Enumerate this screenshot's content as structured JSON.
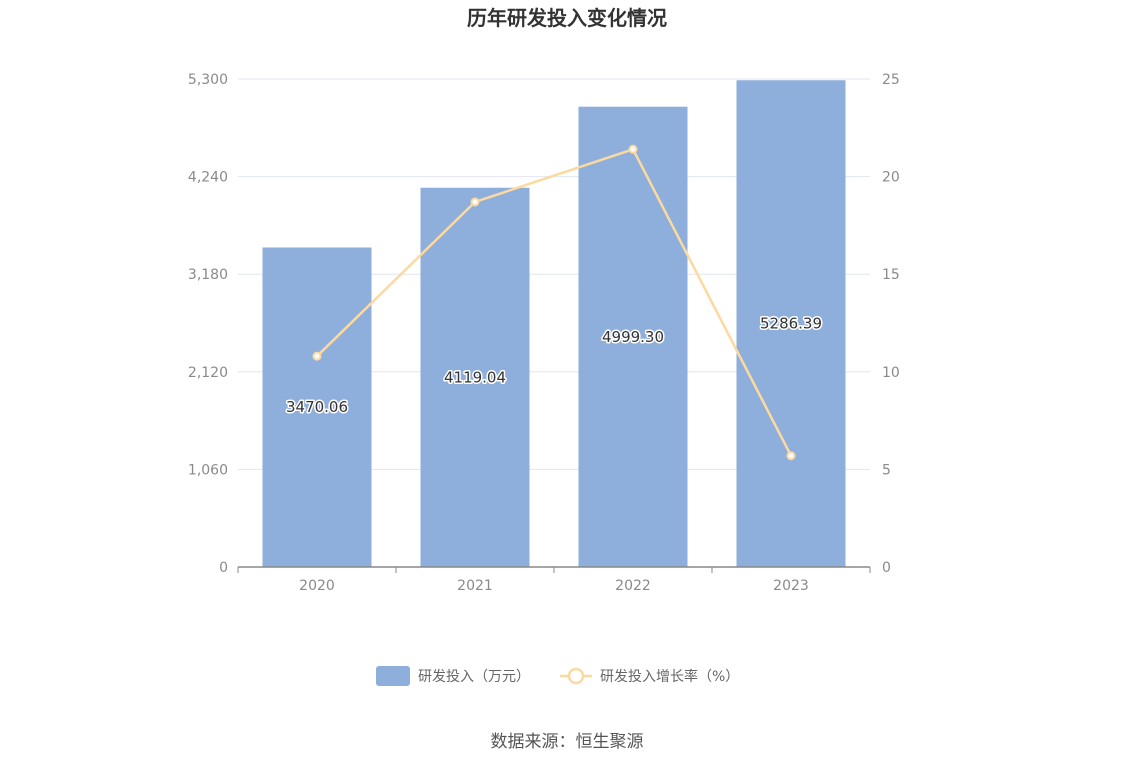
{
  "chart_data": {
    "type": "bar",
    "title": "历年研发投入变化情况",
    "categories": [
      "2020",
      "2021",
      "2022",
      "2023"
    ],
    "series": [
      {
        "name": "研发投入（万元）",
        "type": "bar",
        "axis": "left",
        "values": [
          3470.06,
          4119.04,
          4999.3,
          5286.39
        ],
        "labels": [
          "3470.06",
          "4119.04",
          "4999.30",
          "5286.39"
        ]
      },
      {
        "name": "研发投入增长率（%）",
        "type": "line",
        "axis": "right",
        "values": [
          10.8,
          18.7,
          21.4,
          5.7
        ]
      }
    ],
    "y_left": {
      "ylim": [
        0,
        5300
      ],
      "ticks": [
        0,
        1060,
        2120,
        3180,
        4240,
        5300
      ],
      "tick_labels": [
        "0",
        "1,060",
        "2,120",
        "3,180",
        "4,240",
        "5,300"
      ]
    },
    "y_right": {
      "ylim": [
        0,
        25
      ],
      "ticks": [
        0,
        5,
        10,
        15,
        20,
        25
      ],
      "tick_labels": [
        "0",
        "5",
        "10",
        "15",
        "20",
        "25"
      ]
    },
    "xlabel": "",
    "ylabel": "",
    "grid": true,
    "legend": "bottom-center",
    "source": "数据来源：恒生聚源",
    "colors": {
      "bar": "#8eaedb",
      "line": "#fcd99f",
      "grid": "#e3e6ef",
      "axis": "#888888"
    }
  }
}
